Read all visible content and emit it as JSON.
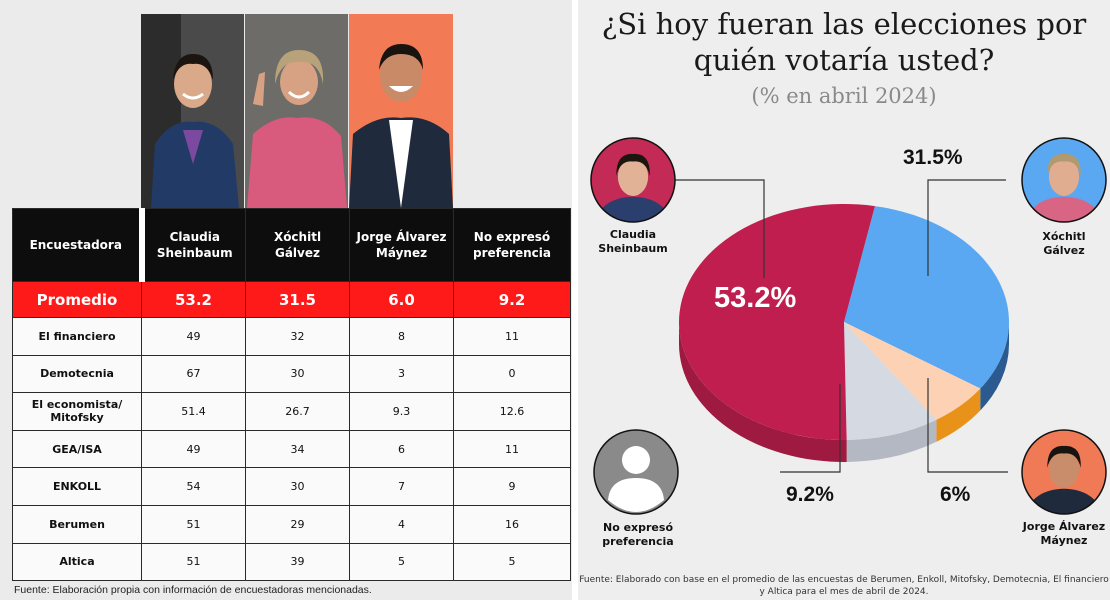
{
  "table": {
    "headers": [
      "Encuestadora",
      "Claudia Sheinbaum",
      "Xóchitl Gálvez",
      "Jorge Álvarez Máynez",
      "No expresó preferencia"
    ],
    "average": {
      "label": "Promedio",
      "values": [
        "53.2",
        "31.5",
        "6.0",
        "9.2"
      ]
    },
    "rows": [
      {
        "name": "El financiero",
        "values": [
          "49",
          "32",
          "8",
          "11"
        ]
      },
      {
        "name": "Demotecnia",
        "values": [
          "67",
          "30",
          "3",
          "0"
        ]
      },
      {
        "name": "El economista/ Mitofsky",
        "values": [
          "51.4",
          "26.7",
          "9.3",
          "12.6"
        ]
      },
      {
        "name": "GEA/ISA",
        "values": [
          "49",
          "34",
          "6",
          "11"
        ]
      },
      {
        "name": "ENKOLL",
        "values": [
          "54",
          "30",
          "7",
          "9"
        ]
      },
      {
        "name": "Berumen",
        "values": [
          "51",
          "29",
          "4",
          "16"
        ]
      },
      {
        "name": "Altica",
        "values": [
          "51",
          "39",
          "5",
          "5"
        ]
      }
    ],
    "source": "Fuente: Elaboración propia con información de encuestadoras mencionadas."
  },
  "chart_data": {
    "type": "pie",
    "title": "¿Si hoy fueran las elecciones por quién votaría usted?",
    "subtitle": "(% en abril 2024)",
    "slices": [
      {
        "label": "Claudia Sheinbaum",
        "value": 53.2,
        "display": "53.2%",
        "color": "#c01e4f"
      },
      {
        "label": "Xóchitl Gálvez",
        "value": 31.5,
        "display": "31.5%",
        "color": "#5aa8f2"
      },
      {
        "label": "Jorge Álvarez Máynez",
        "value": 6.0,
        "display": "6%",
        "color": "#fdd2b4"
      },
      {
        "label": "No expresó preferencia",
        "value": 9.2,
        "display": "9.2%",
        "color": "#d5d9e1"
      }
    ],
    "source": "Fuente: Elaborado con base en el promedio de las encuestas de Berumen, Enkoll, Mitofsky, Demotecnia, El financiero y Altica para el mes de abril de 2024."
  },
  "captions": {
    "claudia": "Claudia Sheinbaum",
    "xochitl": "Xóchitl Gálvez",
    "jorge": "Jorge Álvarez Máynez",
    "none": "No expresó preferencia"
  }
}
